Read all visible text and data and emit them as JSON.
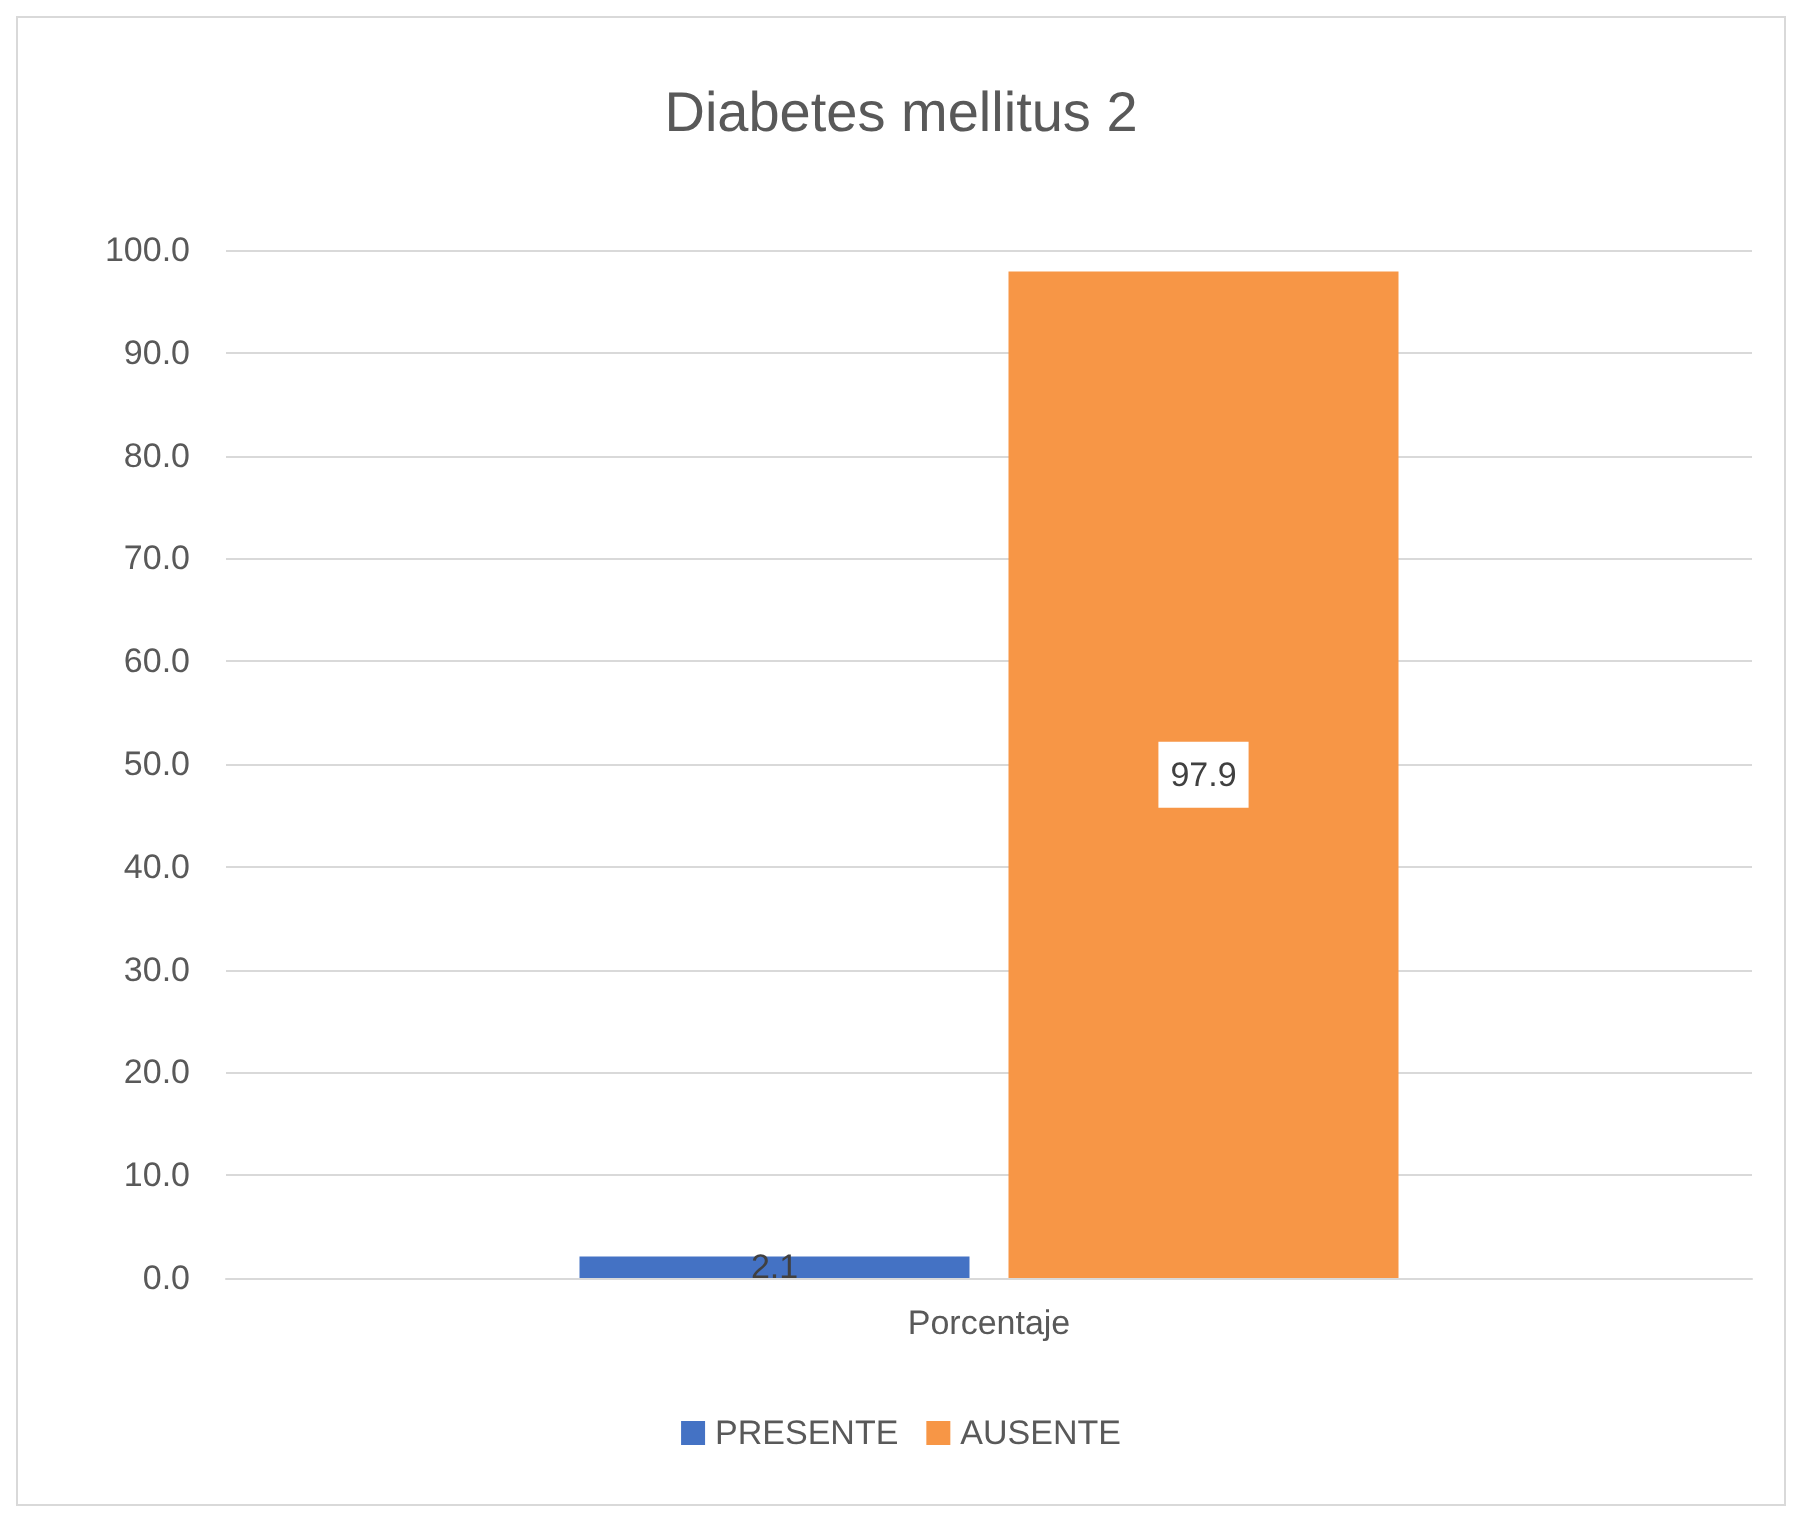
{
  "chart_data": {
    "type": "bar",
    "title": "Diabetes mellitus 2",
    "categories": [
      "Porcentaje"
    ],
    "series": [
      {
        "name": "PRESENTE",
        "color": "#4472c4",
        "values": [
          2.1
        ]
      },
      {
        "name": "AUSENTE",
        "color": "#f79646",
        "values": [
          97.9
        ]
      }
    ],
    "ylim": [
      0,
      100
    ],
    "yticks": [
      {
        "value": 0,
        "label": "0.0"
      },
      {
        "value": 10,
        "label": "10.0"
      },
      {
        "value": 20,
        "label": "20.0"
      },
      {
        "value": 30,
        "label": "30.0"
      },
      {
        "value": 40,
        "label": "40.0"
      },
      {
        "value": 50,
        "label": "50.0"
      },
      {
        "value": 60,
        "label": "60.0"
      },
      {
        "value": 70,
        "label": "70.0"
      },
      {
        "value": 80,
        "label": "80.0"
      },
      {
        "value": 90,
        "label": "90.0"
      },
      {
        "value": 100,
        "label": "100.0"
      }
    ],
    "grid": "y",
    "legend": "bottom",
    "data_labels": true
  }
}
